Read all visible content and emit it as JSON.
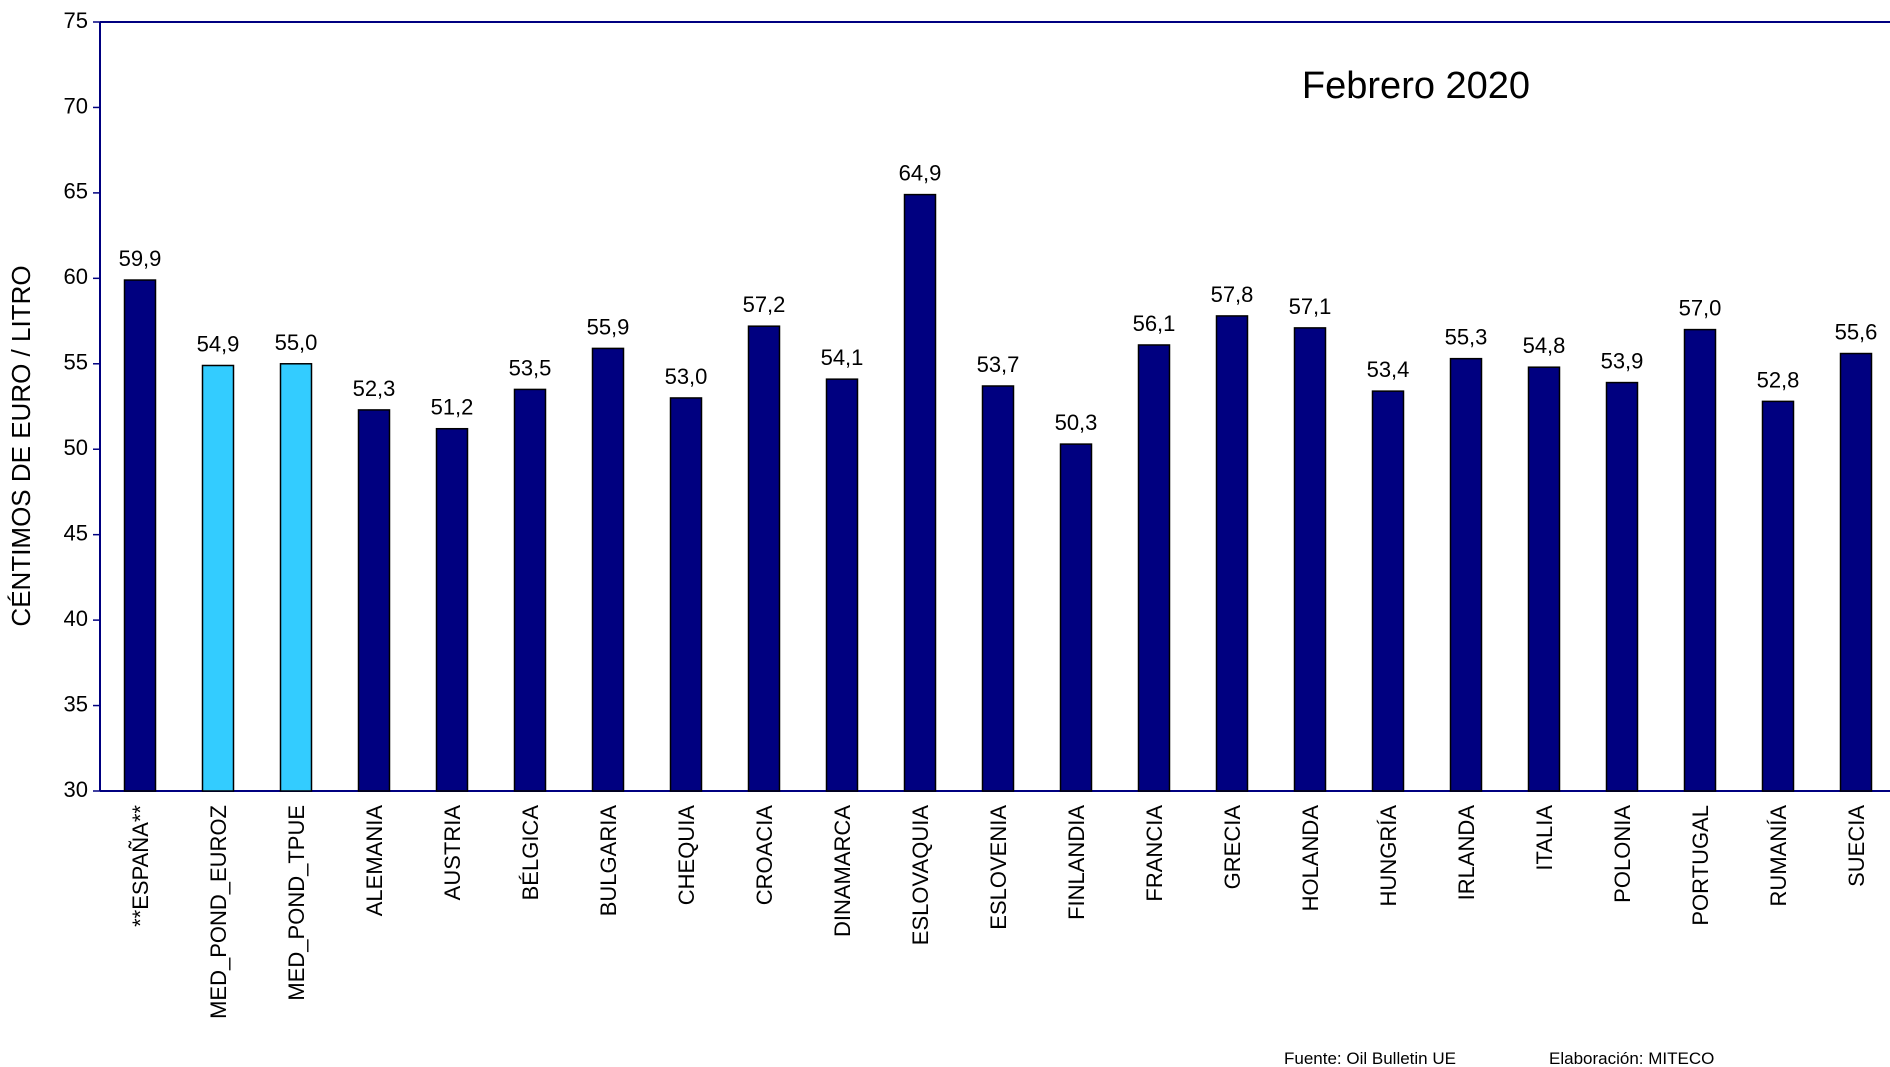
{
  "chart_data": {
    "type": "bar",
    "title": "Febrero 2020",
    "y_label": "CÉNTIMOS DE EURO / LITRO",
    "source": "Fuente: Oil Bulletin UE",
    "credit": "Elaboración: MITECO",
    "categories": [
      "**ESPAÑA**",
      "MED_POND_EUROZ",
      "MED_POND_TPUE",
      "ALEMANIA",
      "AUSTRIA",
      "BÉLGICA",
      "BULGARIA",
      "CHEQUIA",
      "CROACIA",
      "DINAMARCA",
      "ESLOVAQUIA",
      "ESLOVENIA",
      "FINLANDIA",
      "FRANCIA",
      "GRECIA",
      "HOLANDA",
      "HUNGRÍA",
      "IRLANDA",
      "ITALIA",
      "POLONIA",
      "PORTUGAL",
      "RUMANÍA",
      "SUECIA"
    ],
    "values": [
      59.9,
      54.9,
      55.0,
      52.3,
      51.2,
      53.5,
      55.9,
      53.0,
      57.2,
      54.1,
      64.9,
      53.7,
      50.3,
      56.1,
      57.8,
      57.1,
      53.4,
      55.3,
      54.8,
      53.9,
      57.0,
      52.8,
      55.6
    ],
    "value_labels": [
      "59,9",
      "54,9",
      "55,0",
      "52,3",
      "51,2",
      "53,5",
      "55,9",
      "53,0",
      "57,2",
      "54,1",
      "64,9",
      "53,7",
      "50,3",
      "56,1",
      "57,8",
      "57,1",
      "53,4",
      "55,3",
      "54,8",
      "53,9",
      "57,0",
      "52,8",
      "55,6"
    ],
    "colors": [
      "#000080",
      "#33ccff",
      "#33ccff",
      "#000080",
      "#000080",
      "#000080",
      "#000080",
      "#000080",
      "#000080",
      "#000080",
      "#000080",
      "#000080",
      "#000080",
      "#000080",
      "#000080",
      "#000080",
      "#000080",
      "#000080",
      "#000080",
      "#000080",
      "#000080",
      "#000080",
      "#000080"
    ],
    "ylim": [
      30,
      75
    ],
    "yticks": [
      30,
      35,
      40,
      45,
      50,
      55,
      60,
      65,
      70,
      75
    ]
  }
}
